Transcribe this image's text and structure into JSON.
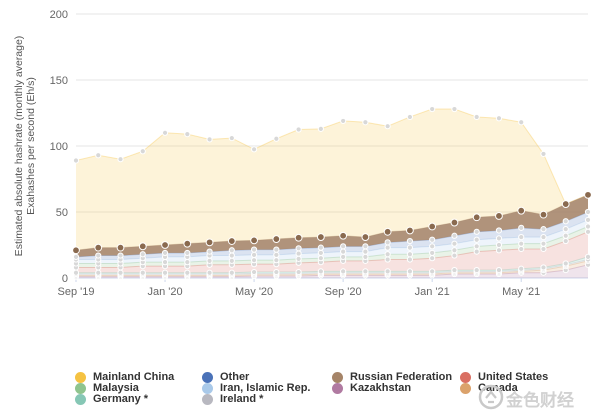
{
  "chart_data": {
    "type": "area",
    "title": "",
    "ylabel": "Estimated absolute hashrate (monthly average)\nExahashes per second (Eh/s)",
    "xlabel": "",
    "ylim": [
      0,
      200
    ],
    "y_ticks": [
      "0",
      "50",
      "100",
      "150",
      "200"
    ],
    "x_tick_labels": [
      {
        "label": "Sep '19",
        "index": 0
      },
      {
        "label": "Jan '20",
        "index": 4
      },
      {
        "label": "May '20",
        "index": 8
      },
      {
        "label": "Sep '20",
        "index": 12
      },
      {
        "label": "Jan '21",
        "index": 16
      },
      {
        "label": "May '21",
        "index": 20
      }
    ],
    "x": [
      "Sep '19",
      "Oct '19",
      "Nov '19",
      "Dec '19",
      "Jan '20",
      "Feb '20",
      "Mar '20",
      "Apr '20",
      "May '20",
      "Jun '20",
      "Jul '20",
      "Aug '20",
      "Sep '20",
      "Oct '20",
      "Nov '20",
      "Dec '20",
      "Jan '21",
      "Feb '21",
      "Mar '21",
      "Apr '21",
      "May '21",
      "Jun '21",
      "Jul '21",
      "Aug '21"
    ],
    "grid": true,
    "legend_position": "bottom",
    "series": [
      {
        "name": "Kazakhstan",
        "color": "#b07aa1",
        "values": [
          1,
          1,
          1,
          1,
          1,
          1,
          1,
          1,
          1.5,
          1.5,
          1.5,
          2,
          2,
          2,
          2,
          2,
          2,
          3,
          3,
          3,
          4,
          4,
          6,
          10
        ]
      },
      {
        "name": "Canada",
        "color": "#dba26b",
        "values": [
          1,
          1,
          1,
          1,
          1,
          1,
          1,
          1,
          1,
          1,
          1,
          1,
          1,
          1,
          1,
          1,
          1,
          1,
          1,
          1,
          1,
          2,
          3,
          3
        ]
      },
      {
        "name": "Ireland *",
        "color": "#b8b8c0",
        "values": [
          1,
          1,
          1,
          1,
          1,
          1,
          1,
          1,
          1,
          1,
          1,
          1,
          1,
          1,
          1,
          1,
          1,
          1,
          1,
          1,
          1,
          1,
          1,
          1
        ]
      },
      {
        "name": "Germany *",
        "color": "#86c7b5",
        "values": [
          1,
          1,
          1,
          1,
          1,
          1,
          1,
          1,
          1,
          1,
          1,
          1,
          1,
          1,
          1,
          1,
          1,
          1,
          1,
          1,
          1,
          1,
          1,
          2
        ]
      },
      {
        "name": "United States",
        "color": "#d96f62",
        "values": [
          4,
          4,
          4,
          5,
          5,
          5,
          6,
          6,
          6,
          6,
          7,
          7,
          8,
          8,
          9,
          9,
          10,
          11,
          14,
          15,
          15,
          14,
          17,
          19
        ]
      },
      {
        "name": "Malaysia",
        "color": "#8fc48e",
        "values": [
          3,
          3,
          3,
          3,
          3,
          3,
          3,
          3,
          3,
          3,
          3,
          3,
          3,
          3,
          4,
          4,
          4,
          4,
          4,
          4,
          4,
          4,
          4,
          4
        ]
      },
      {
        "name": "Iran, Islamic Rep.",
        "color": "#a9c9e9",
        "values": [
          3,
          3,
          3,
          3,
          4,
          4,
          4,
          4,
          4,
          4,
          4,
          4,
          4,
          4,
          5,
          5,
          5,
          5,
          5,
          5,
          5,
          5,
          5,
          5
        ]
      },
      {
        "name": "Other",
        "color": "#4a72b8",
        "values": [
          2,
          3,
          3,
          3,
          3,
          3,
          3,
          4,
          4,
          4,
          4,
          4,
          4,
          4,
          4,
          5,
          5,
          6,
          6,
          6,
          7,
          6,
          6,
          6
        ]
      },
      {
        "name": "Russian Federation",
        "color": "#a58468",
        "values": [
          5,
          6,
          6,
          6,
          6,
          7,
          7,
          7,
          7,
          8,
          8,
          8,
          8,
          7,
          8,
          8,
          10,
          10,
          11,
          11,
          13,
          11,
          13,
          13
        ]
      },
      {
        "name": "Mainland China",
        "color": "#f5c242",
        "values": [
          68,
          70,
          67,
          72,
          85,
          83,
          78,
          78,
          69,
          76,
          82,
          82,
          87,
          87,
          80,
          86,
          89,
          86,
          76,
          74,
          67,
          46,
          0,
          0
        ]
      }
    ],
    "legend": [
      "Mainland China",
      "Other",
      "Russian Federation",
      "United States",
      "Malaysia",
      "Iran, Islamic Rep.",
      "Kazakhstan",
      "Canada",
      "Germany *",
      "Ireland *"
    ]
  },
  "watermark_text": "金色财经"
}
